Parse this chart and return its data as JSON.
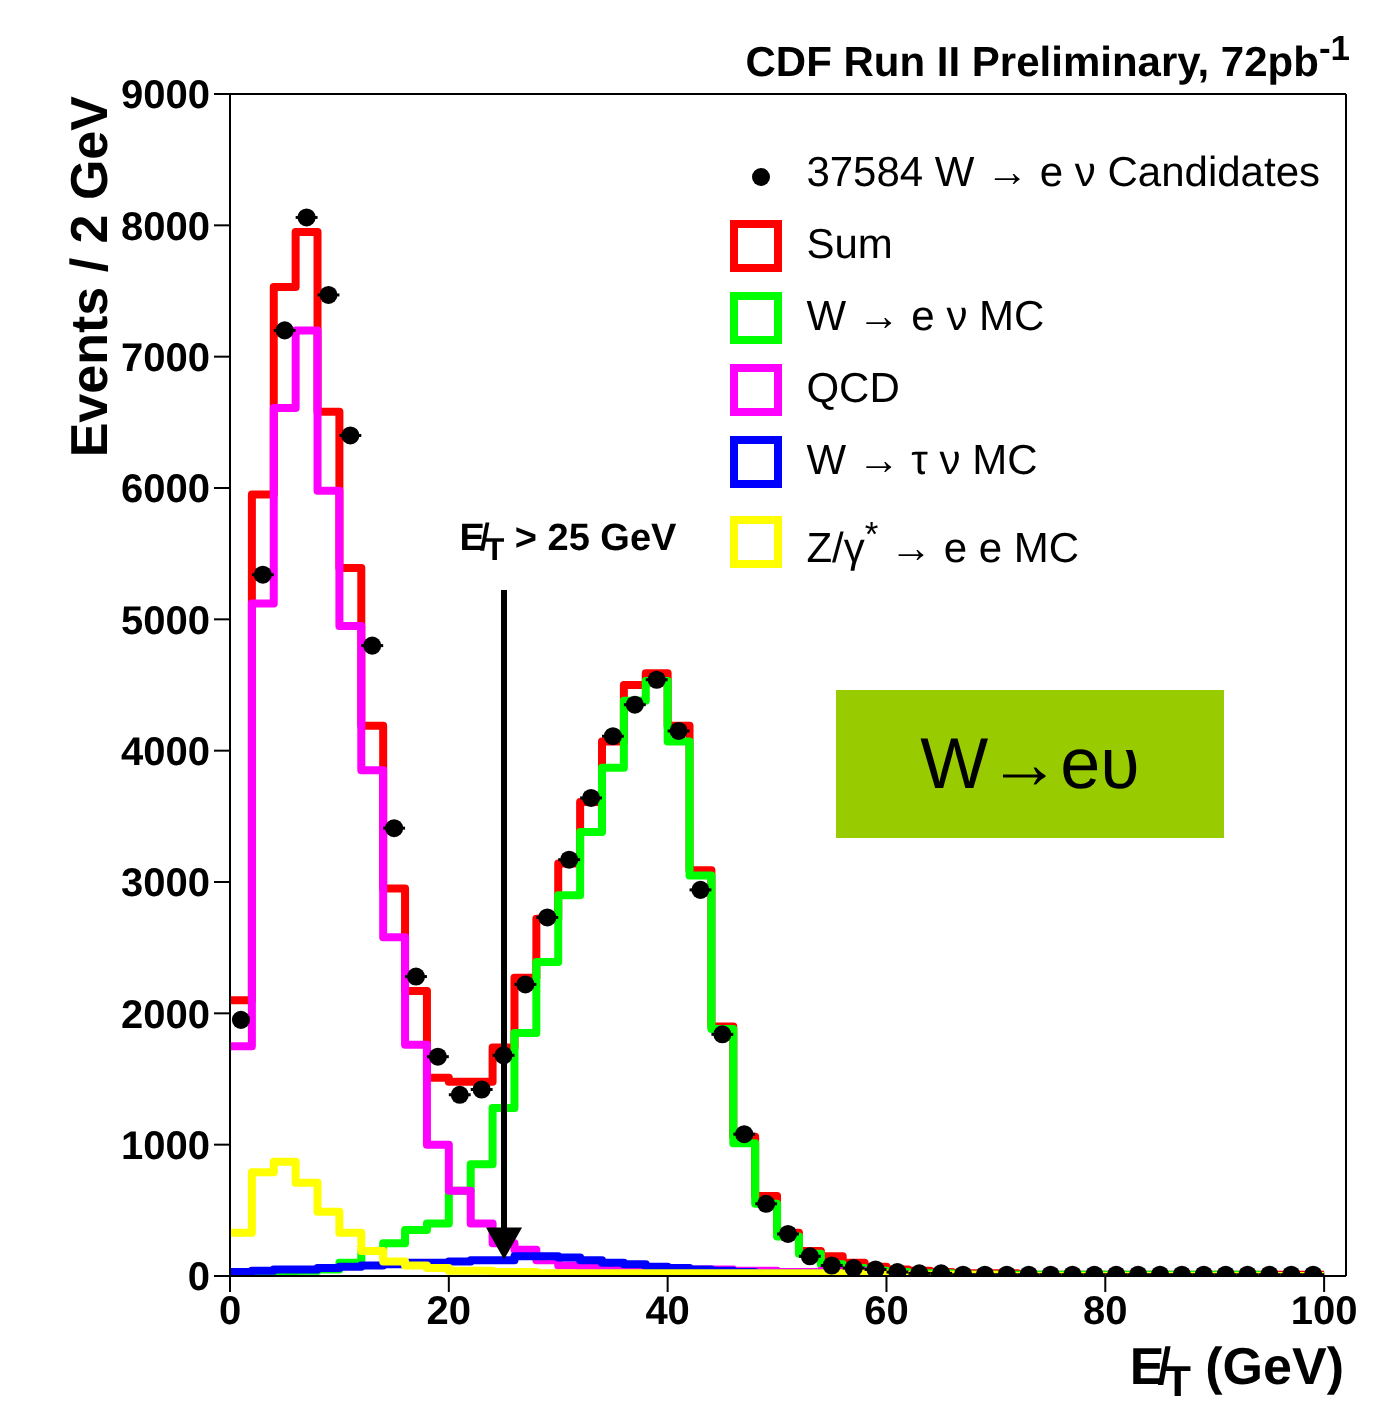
{
  "chart_data": {
    "type": "histogram",
    "title": "CDF Run II Preliminary, 72pb$^{-1}$",
    "xlabel": "E̸$_{T}$ (GeV)",
    "ylabel": "Events / 2 GeV",
    "bins": [
      0,
      2,
      4,
      6,
      8,
      10,
      12,
      14,
      16,
      18,
      20,
      22,
      24,
      26,
      28,
      30,
      32,
      34,
      36,
      38,
      40,
      42,
      44,
      46,
      48,
      50,
      52,
      54,
      56,
      58,
      60,
      62,
      64,
      66,
      68,
      70,
      72,
      74,
      76,
      78,
      80,
      82,
      84,
      86,
      88,
      90,
      92,
      94,
      96,
      98,
      100
    ],
    "series": [
      {
        "name": "37584 W → e ν Candidates",
        "type": "scatter",
        "color": "#000000",
        "marker": "circle",
        "x": [
          1,
          3,
          5,
          7,
          9,
          11,
          13,
          15,
          17,
          19,
          21,
          23,
          25,
          27,
          29,
          31,
          33,
          35,
          37,
          39,
          41,
          43,
          45,
          47,
          49,
          51,
          53,
          55,
          57,
          59,
          61,
          63,
          65,
          67,
          69,
          71,
          73,
          75,
          77,
          79,
          81,
          83,
          85,
          87,
          89,
          91,
          93,
          95,
          97,
          99
        ],
        "values": [
          1950,
          5340,
          7200,
          8060,
          7470,
          6400,
          4800,
          3410,
          2280,
          1670,
          1380,
          1420,
          1680,
          2220,
          2730,
          3170,
          3640,
          4110,
          4350,
          4540,
          4150,
          2940,
          1840,
          1080,
          550,
          320,
          150,
          80,
          60,
          50,
          30,
          20,
          20,
          10,
          10,
          10,
          10,
          10,
          10,
          10,
          10,
          10,
          10,
          10,
          10,
          10,
          10,
          10,
          10,
          10
        ],
        "xerrors": [
          null,
          1,
          1,
          1,
          1,
          1,
          1,
          1,
          1,
          1,
          1,
          1,
          1,
          1,
          1,
          1,
          1,
          1,
          1,
          1,
          1,
          1,
          1,
          1,
          1,
          1,
          1,
          1,
          1,
          1,
          1,
          1,
          1,
          1,
          1,
          1,
          1,
          1,
          1,
          1,
          1,
          1,
          1,
          1,
          1,
          1,
          1,
          1,
          1,
          1
        ]
      },
      {
        "name": "Sum",
        "color": "#ff0000",
        "values": [
          2100,
          5950,
          7530,
          7950,
          6580,
          5390,
          4190,
          2950,
          2170,
          1510,
          1480,
          1480,
          1740,
          2270,
          2720,
          3140,
          3610,
          4070,
          4500,
          4590,
          4190,
          3090,
          1900,
          1060,
          610,
          330,
          190,
          150,
          100,
          70,
          50,
          40,
          30,
          20,
          20,
          20,
          10,
          10,
          10,
          10,
          10,
          10,
          10,
          10,
          10,
          10,
          10,
          10,
          10,
          10
        ]
      },
      {
        "name": "W → e ν MC",
        "color": "#00ff00",
        "values": [
          20,
          20,
          30,
          40,
          50,
          100,
          190,
          250,
          350,
          400,
          650,
          850,
          1280,
          1850,
          2390,
          2900,
          3380,
          3870,
          4380,
          4530,
          4070,
          3050,
          1880,
          1010,
          550,
          300,
          170,
          90,
          60,
          40,
          30,
          20,
          20,
          10,
          10,
          10,
          10,
          10,
          10,
          10,
          10,
          10,
          10,
          10,
          10,
          10,
          10,
          0,
          0,
          0
        ]
      },
      {
        "name": "QCD",
        "color": "#ff00ff",
        "values": [
          1750,
          5120,
          6610,
          7200,
          5980,
          4950,
          3850,
          2580,
          1760,
          1000,
          650,
          400,
          250,
          200,
          120,
          80,
          60,
          50,
          50,
          50,
          50,
          50,
          50,
          40,
          40,
          30,
          30,
          40,
          40,
          20,
          10,
          0,
          0,
          0,
          0,
          0,
          0,
          0,
          0,
          0,
          0,
          0,
          0,
          0,
          0,
          0,
          0,
          0,
          0,
          0
        ]
      },
      {
        "name": "W → τ ν MC",
        "color": "#0000ff",
        "values": [
          30,
          40,
          50,
          50,
          60,
          70,
          80,
          90,
          100,
          100,
          110,
          120,
          120,
          150,
          150,
          140,
          120,
          100,
          90,
          70,
          60,
          50,
          40,
          30,
          20,
          20,
          20,
          10,
          10,
          10,
          0,
          0,
          0,
          0,
          0,
          0,
          0,
          0,
          0,
          0,
          0,
          0,
          0,
          0,
          0,
          0,
          0,
          0,
          0,
          0
        ]
      },
      {
        "name": "Z/γ$^{*}$ → e e MC",
        "color": "#ffff00",
        "values": [
          330,
          790,
          870,
          710,
          490,
          330,
          190,
          110,
          80,
          60,
          40,
          40,
          30,
          30,
          20,
          20,
          20,
          20,
          20,
          20,
          20,
          20,
          20,
          20,
          20,
          20,
          20,
          20,
          20,
          20,
          10,
          10,
          10,
          10,
          10,
          0,
          0,
          0,
          0,
          0,
          0,
          0,
          0,
          0,
          0,
          0,
          0,
          0,
          0,
          0
        ]
      }
    ],
    "xlim": [
      0,
      102
    ],
    "xticks": [
      0,
      20,
      40,
      60,
      80,
      100
    ],
    "ylim": [
      0,
      9000
    ],
    "yticks": [
      0,
      1000,
      2000,
      3000,
      4000,
      5000,
      6000,
      7000,
      8000,
      9000
    ],
    "legend": "top right",
    "ref_lines": [
      {
        "axis": "x",
        "value": 25,
        "label": "E̸$_{T}$ > 25 GeV"
      }
    ],
    "annotations": [
      "W→eυ"
    ]
  }
}
